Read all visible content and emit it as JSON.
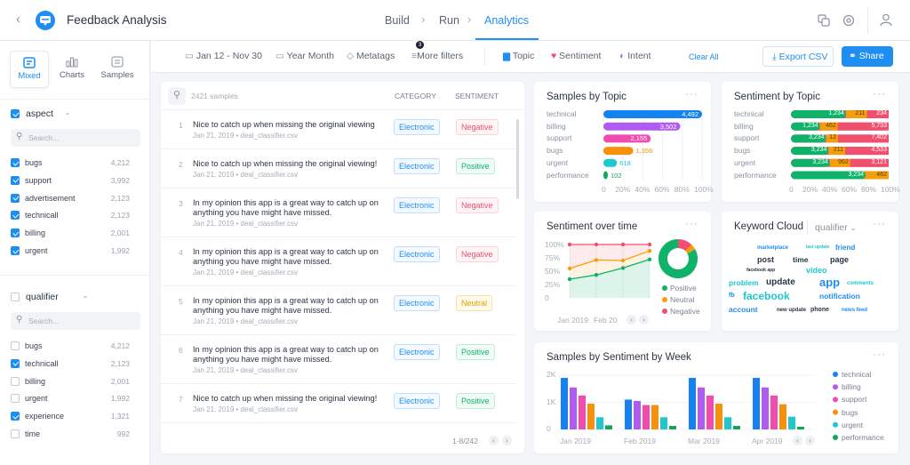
{
  "header": {
    "title": "Feedback Analysis",
    "nav": [
      "Build",
      "Run",
      "Analytics"
    ],
    "active": "Analytics"
  },
  "sidebar": {
    "views": [
      "Mixed",
      "Charts",
      "Samples"
    ],
    "active_view": "Mixed",
    "groups": [
      {
        "name": "aspect",
        "checked": true,
        "search_placeholder": "Search...",
        "items": [
          {
            "label": "bugs",
            "count": "4,212",
            "checked": true
          },
          {
            "label": "support",
            "count": "3,992",
            "checked": true
          },
          {
            "label": "advertisement",
            "count": "2,123",
            "checked": true
          },
          {
            "label": "technicall",
            "count": "2,123",
            "checked": true
          },
          {
            "label": "billing",
            "count": "2,001",
            "checked": true
          },
          {
            "label": "urgent",
            "count": "1,992",
            "checked": true
          }
        ]
      },
      {
        "name": "qualifier",
        "checked": false,
        "search_placeholder": "Search...",
        "items": [
          {
            "label": "bugs",
            "count": "4,212",
            "checked": false
          },
          {
            "label": "technicall",
            "count": "2,123",
            "checked": true
          },
          {
            "label": "billing",
            "count": "2,001",
            "checked": false
          },
          {
            "label": "urgent",
            "count": "1,992",
            "checked": false
          },
          {
            "label": "experience",
            "count": "1,321",
            "checked": true
          },
          {
            "label": "time",
            "count": "992",
            "checked": false
          }
        ]
      }
    ]
  },
  "filters": {
    "date_range": "Jan 12 - Nov 30",
    "granularity": "Year Month",
    "metatags": "Metatags",
    "more_filters": "More filters",
    "more_filters_badge": "3",
    "topic": "Topic",
    "sentiment": "Sentiment",
    "intent": "Intent",
    "clear_all": "Clear All",
    "export": "Export CSV",
    "share": "Share"
  },
  "samples": {
    "count_label": "2421 samples",
    "columns": [
      "CATEGORY",
      "SENTIMENT"
    ],
    "pagination": "1-8/242",
    "rows": [
      {
        "n": "1",
        "text": "Nice to catch up when missing the original viewing",
        "meta": "Jan 21, 2019 • deal_classifier.csv",
        "category": "Electronic",
        "sentiment": "Negative"
      },
      {
        "n": "2",
        "text": "Nice to catch up when missing the original viewing!",
        "meta": "Jan 21, 2019 • deal_classifier.csv",
        "category": "Electronic",
        "sentiment": "Positive"
      },
      {
        "n": "3",
        "text": "In my opinion this app is a great way to catch up on anything you have might have missed.",
        "meta": "Jan 21, 2019 • deal_classifier.csv",
        "category": "Electronic",
        "sentiment": "Negative"
      },
      {
        "n": "4",
        "text": "In my opinion this app is a great way to catch up on anything you have might have missed.",
        "meta": "Jan 21, 2019 • deal_classifier.csv",
        "category": "Electronic",
        "sentiment": "Negative"
      },
      {
        "n": "5",
        "text": "In my opinion this app is a great way to catch up on anything you have might have missed.",
        "meta": "Jan 21, 2019 • deal_classifier.csv",
        "category": "Electronic",
        "sentiment": "Neutral"
      },
      {
        "n": "6",
        "text": "In my opinion this app is a great way to catch up on anything you have might have missed.",
        "meta": "Jan 21, 2019 • deal_classifier.csv",
        "category": "Electronic",
        "sentiment": "Positive"
      },
      {
        "n": "7",
        "text": "Nice to catch up when missing the original viewing!",
        "meta": "Jan 21, 2019 • deal_classifier.csv",
        "category": "Electronic",
        "sentiment": "Positive"
      }
    ]
  },
  "colors": {
    "accent": "#1f8ef1",
    "positive": "#10b26a",
    "neutral": "#f59e0b",
    "negative": "#f0506e",
    "technical": "#1482f0",
    "billing": "#b15cf0",
    "support": "#f24bb0",
    "bugs": "#f7900a",
    "urgent": "#1ec8cc",
    "performance": "#10a852"
  },
  "chart_data": [
    {
      "id": "samples_by_topic",
      "type": "bar",
      "title": "Samples by Topic",
      "orientation": "horizontal",
      "categories": [
        "technical",
        "billing",
        "support",
        "bugs",
        "urgent",
        "performance"
      ],
      "values": [
        4492,
        3502,
        2155,
        1356,
        618,
        102
      ],
      "value_labels": [
        "4,492",
        "3,502",
        "2,155",
        "1,356",
        "618",
        "102"
      ],
      "x_ticks": [
        "0",
        "20%",
        "40%",
        "60%",
        "80%",
        "100%"
      ]
    },
    {
      "id": "sentiment_by_topic",
      "type": "bar",
      "stacked": true,
      "title": "Sentiment by Topic",
      "categories": [
        "technical",
        "billing",
        "support",
        "bugs",
        "urgent",
        "performance"
      ],
      "series": [
        {
          "name": "Positive",
          "values": [
            1234,
            1234,
            3234,
            3234,
            3234,
            3234
          ],
          "labels": [
            "1,234",
            "1,234",
            "3,234",
            "3,234",
            "3,234",
            "3,234"
          ]
        },
        {
          "name": "Neutral",
          "values": [
            211,
            462,
            12,
            211,
            962,
            462
          ],
          "labels": [
            "211",
            "462",
            "12",
            "211",
            "962",
            "462"
          ]
        },
        {
          "name": "Negative",
          "values": [
            234,
            5733,
            7402,
            4533,
            3121,
            null
          ],
          "labels": [
            "234",
            "5,733",
            "7,402",
            "4,533",
            "3,121",
            ""
          ]
        }
      ],
      "x_ticks": [
        "0",
        "20%",
        "40%",
        "60%",
        "80%",
        "100%"
      ]
    },
    {
      "id": "sentiment_over_time",
      "type": "area",
      "title": "Sentiment over time",
      "y_ticks": [
        "100%",
        "75%",
        "50%",
        "25%",
        "0"
      ],
      "ylim": [
        0,
        100
      ],
      "x_ticks": [
        "Jan 2019",
        "Feb 20"
      ],
      "series": [
        {
          "name": "Positive",
          "values": [
            35,
            43,
            56,
            72
          ]
        },
        {
          "name": "Neutral",
          "values": [
            55,
            71,
            70,
            88
          ]
        },
        {
          "name": "Negative",
          "values": [
            100,
            100,
            100,
            100
          ]
        }
      ],
      "donut": {
        "Positive": 83,
        "Neutral": 5,
        "Negative": 12
      }
    },
    {
      "id": "samples_by_sentiment_by_week",
      "type": "bar",
      "title": "Samples by Sentiment by Week",
      "categories": [
        "Jan 2019",
        "Feb 2019",
        "Mar 2019",
        "Apr 2019"
      ],
      "y_ticks": [
        "2K",
        "1K",
        "0"
      ],
      "ylim": [
        0,
        2000
      ],
      "legend": "right",
      "series": [
        {
          "name": "technical",
          "values": [
            1900,
            1100,
            1900,
            1900
          ]
        },
        {
          "name": "billing",
          "values": [
            1550,
            1050,
            1550,
            1550
          ]
        },
        {
          "name": "support",
          "values": [
            1250,
            900,
            1250,
            1250
          ]
        },
        {
          "name": "bugs",
          "values": [
            950,
            900,
            950,
            930
          ]
        },
        {
          "name": "urgent",
          "values": [
            450,
            450,
            450,
            470
          ]
        },
        {
          "name": "performance",
          "values": [
            150,
            130,
            130,
            100
          ]
        }
      ]
    }
  ],
  "keyword_cloud": {
    "title": "Keyword Cloud",
    "selector": "qualifier",
    "words": [
      "marketplace",
      "last update",
      "friend",
      "post",
      "time",
      "page",
      "facebook app",
      "update",
      "video",
      "problem",
      "app",
      "comments",
      "fb",
      "facebook",
      "account",
      "new update",
      "notification",
      "phone",
      "news feed"
    ]
  }
}
